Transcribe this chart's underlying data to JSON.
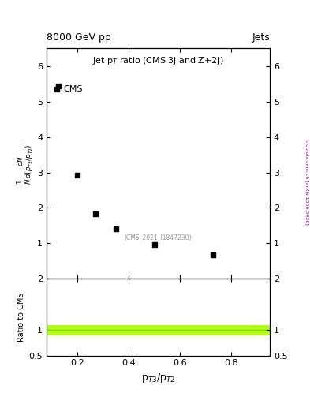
{
  "title_top_left": "8000 GeV pp",
  "title_top_right": "Jets",
  "plot_title": "Jet p$_{T}$ ratio (CMS 3j and Z+2j)",
  "cms_label": "CMS",
  "watermark": "(CMS_2021_I1847230)",
  "arxiv_label": "mcplots.cern.ch [arXiv:1306.3436]",
  "x_data": [
    0.125,
    0.2,
    0.27,
    0.35,
    0.5,
    0.73
  ],
  "y_data": [
    5.45,
    2.92,
    1.83,
    1.4,
    0.97,
    0.67
  ],
  "xlabel": "p$_{T3}$/p$_{T2}$",
  "ylabel_line1": "$\\frac{1}{N}\\frac{dN}{d(p_{T3}/p_{T2})}$",
  "ylim_main": [
    0,
    6.5
  ],
  "yticks_main": [
    1,
    2,
    3,
    4,
    5,
    6
  ],
  "xlim": [
    0.08,
    0.95
  ],
  "xticks": [
    0.2,
    0.4,
    0.6,
    0.8
  ],
  "ylim_ratio": [
    0.5,
    2.0
  ],
  "yticks_ratio": [
    0.5,
    1.0,
    2.0
  ],
  "ratio_band_low": 0.9,
  "ratio_band_high": 1.1,
  "ratio_line_y": 1.0,
  "ratio_band_color": "#aaff00",
  "ratio_line_color": "#aaff00",
  "marker_color": "black",
  "marker_style": "s",
  "marker_size": 5,
  "bg_color": "white"
}
